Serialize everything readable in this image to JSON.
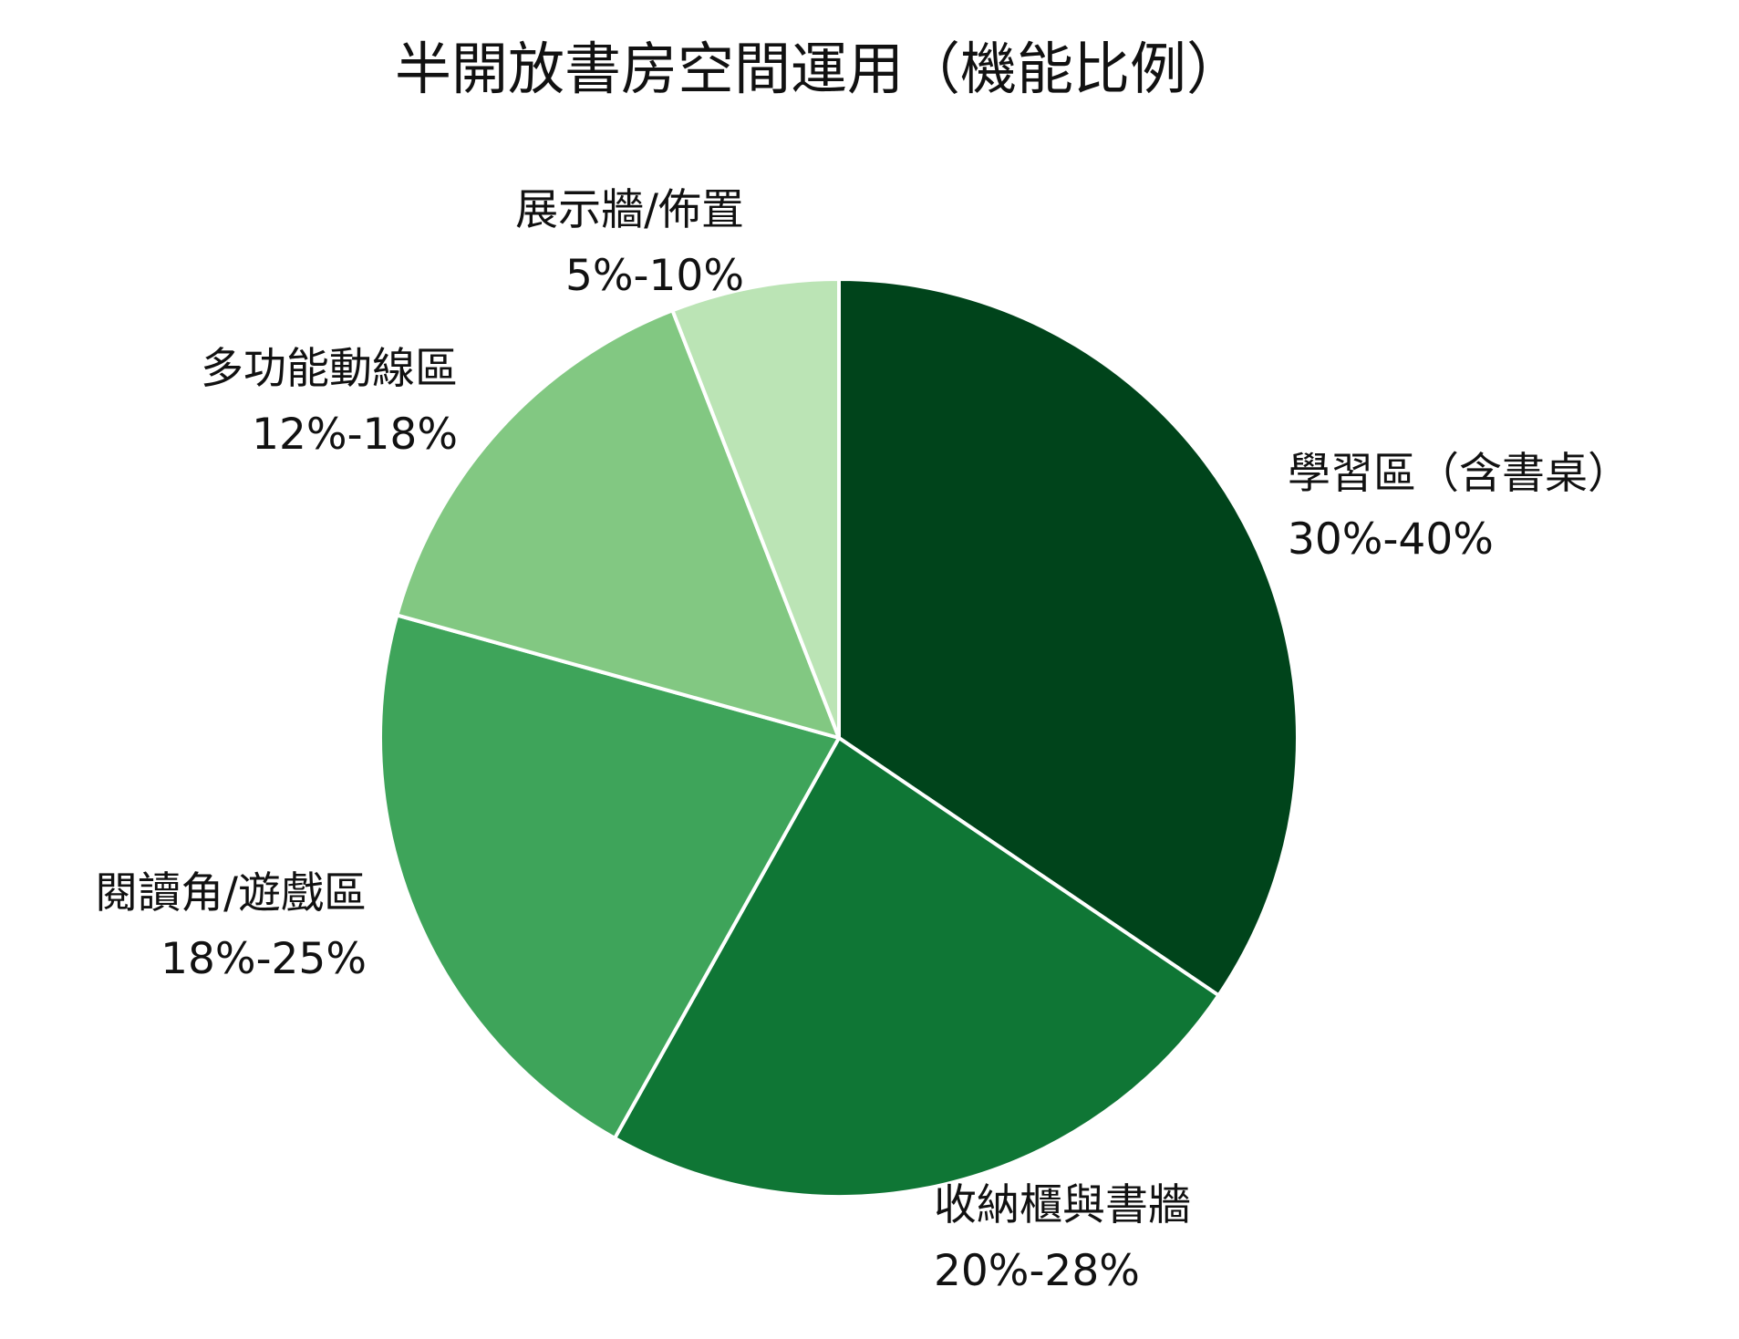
{
  "chart_data": {
    "type": "pie",
    "title": "半開放書房空間運用（機能比例）",
    "start_angle_deg": 90,
    "direction": "clockwise",
    "slice_border_color": "#ffffff",
    "slices": [
      {
        "label": "學習區（含書桌）",
        "range": "30%-40%",
        "value": 35,
        "color": "#00441b"
      },
      {
        "label": "收納櫃與書牆",
        "range": "20%-28%",
        "value": 24,
        "color": "#0f7635"
      },
      {
        "label": "閱讀角/遊戲區",
        "range": "18%-25%",
        "value": 21.5,
        "color": "#3ea45a"
      },
      {
        "label": "多功能動線區",
        "range": "12%-18%",
        "value": 15,
        "color": "#82c882"
      },
      {
        "label": "展示牆/佈置",
        "range": "5%-10%",
        "value": 6,
        "color": "#bbe4b5"
      }
    ]
  }
}
